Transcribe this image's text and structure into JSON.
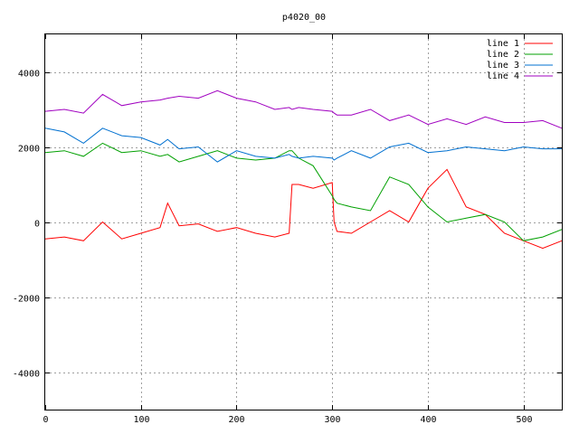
{
  "chart_data": {
    "type": "line",
    "title": "p4020_00",
    "xlim": [
      0,
      540
    ],
    "ylim": [
      -5000,
      5000
    ],
    "xticks": [
      0,
      100,
      200,
      300,
      400,
      500
    ],
    "yticks": [
      -4000,
      -2000,
      0,
      2000,
      4000
    ],
    "grid": true,
    "legend_position": "top-right",
    "x": [
      0,
      20,
      40,
      60,
      80,
      100,
      120,
      128,
      140,
      160,
      180,
      200,
      220,
      240,
      255,
      258,
      265,
      280,
      300,
      302,
      305,
      320,
      340,
      360,
      380,
      400,
      420,
      440,
      460,
      480,
      500,
      520,
      540
    ],
    "series": [
      {
        "name": "line 1",
        "color": "#ff0000",
        "values": [
          -450,
          -400,
          -500,
          0,
          -450,
          -300,
          -150,
          500,
          -100,
          -50,
          -250,
          -150,
          -300,
          -400,
          -300,
          1000,
          1000,
          900,
          1050,
          0,
          -250,
          -300,
          0,
          300,
          0,
          900,
          1400,
          400,
          200,
          -300,
          -500,
          -700,
          -500
        ]
      },
      {
        "name": "line 2",
        "color": "#00a000",
        "values": [
          1850,
          1900,
          1750,
          2100,
          1850,
          1900,
          1750,
          1800,
          1600,
          1750,
          1900,
          1700,
          1650,
          1700,
          1900,
          1900,
          1700,
          1500,
          700,
          600,
          500,
          400,
          300,
          1200,
          1000,
          400,
          0,
          100,
          200,
          0,
          -500,
          -400,
          -200
        ]
      },
      {
        "name": "line 3",
        "color": "#0070d0",
        "values": [
          2500,
          2400,
          2100,
          2500,
          2300,
          2250,
          2050,
          2200,
          1950,
          2000,
          1600,
          1900,
          1750,
          1700,
          1800,
          1750,
          1700,
          1750,
          1700,
          1650,
          1700,
          1900,
          1700,
          2000,
          2100,
          1850,
          1900,
          2000,
          1950,
          1900,
          2000,
          1950,
          1950
        ]
      },
      {
        "name": "line 4",
        "color": "#a000c0",
        "values": [
          2950,
          3000,
          2900,
          3400,
          3100,
          3200,
          3250,
          3300,
          3350,
          3300,
          3500,
          3300,
          3200,
          3000,
          3050,
          3000,
          3050,
          3000,
          2950,
          2900,
          2850,
          2850,
          3000,
          2700,
          2850,
          2600,
          2750,
          2600,
          2800,
          2650,
          2650,
          2700,
          2500
        ]
      }
    ]
  }
}
